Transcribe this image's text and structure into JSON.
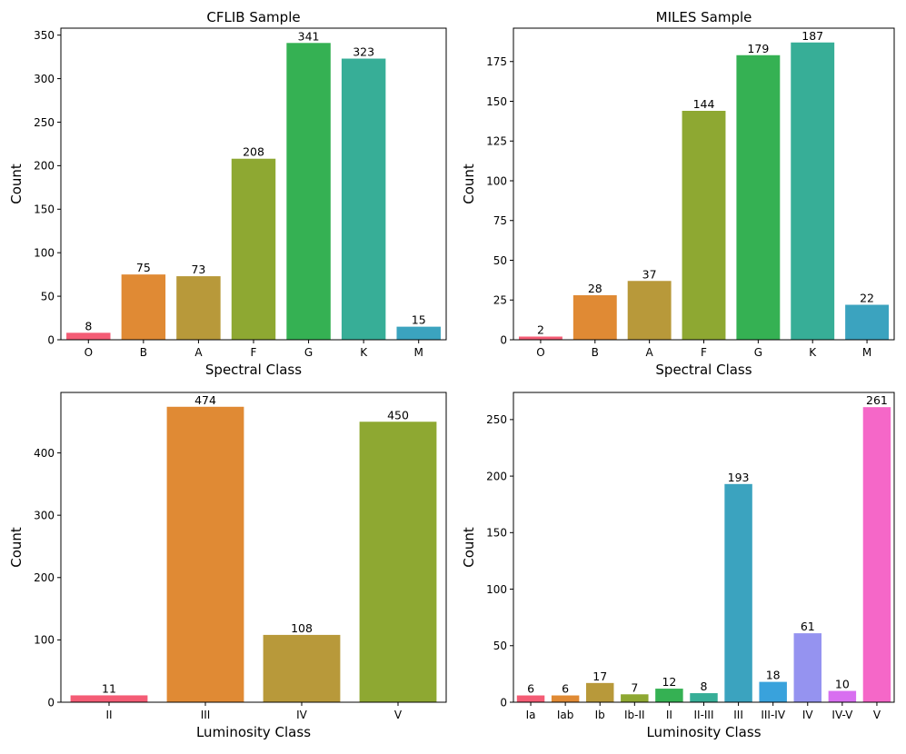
{
  "chart_data": [
    {
      "type": "bar",
      "title": "CFLIB Sample",
      "xlabel": "Spectral Class",
      "ylabel": "Count",
      "categories": [
        "O",
        "B",
        "A",
        "F",
        "G",
        "K",
        "M"
      ],
      "values": [
        8,
        75,
        73,
        208,
        341,
        323,
        15
      ],
      "ylim": [
        0,
        358
      ],
      "yticks": [
        0,
        50,
        100,
        150,
        200,
        250,
        300,
        350
      ],
      "colors": [
        "#f45c75",
        "#e08a34",
        "#b8993a",
        "#8ea832",
        "#35b153",
        "#37ae97",
        "#3ba3bf"
      ],
      "grid": false,
      "legend": "none"
    },
    {
      "type": "bar",
      "title": "MILES Sample",
      "xlabel": "Spectral Class",
      "ylabel": "Count",
      "categories": [
        "O",
        "B",
        "A",
        "F",
        "G",
        "K",
        "M"
      ],
      "values": [
        2,
        28,
        37,
        144,
        179,
        187,
        22
      ],
      "ylim": [
        0,
        196
      ],
      "yticks": [
        0,
        25,
        50,
        75,
        100,
        125,
        150,
        175
      ],
      "colors": [
        "#f45c75",
        "#e08a34",
        "#b8993a",
        "#8ea832",
        "#35b153",
        "#37ae97",
        "#3ba3bf"
      ],
      "grid": false,
      "legend": "none"
    },
    {
      "type": "bar",
      "title": "",
      "xlabel": "Luminosity Class",
      "ylabel": "Count",
      "categories": [
        "II",
        "III",
        "IV",
        "V"
      ],
      "values": [
        11,
        474,
        108,
        450
      ],
      "ylim": [
        0,
        497
      ],
      "yticks": [
        0,
        100,
        200,
        300,
        400
      ],
      "colors": [
        "#f45c75",
        "#e08a34",
        "#b8993a",
        "#8ea832"
      ],
      "grid": false,
      "legend": "none"
    },
    {
      "type": "bar",
      "title": "",
      "xlabel": "Luminosity Class",
      "ylabel": "Count",
      "categories": [
        "Ia",
        "Iab",
        "Ib",
        "Ib-II",
        "II",
        "II-III",
        "III",
        "III-IV",
        "IV",
        "IV-V",
        "V"
      ],
      "values": [
        6,
        6,
        17,
        7,
        12,
        8,
        193,
        18,
        61,
        10,
        261
      ],
      "ylim": [
        0,
        274
      ],
      "yticks": [
        0,
        50,
        100,
        150,
        200,
        250
      ],
      "colors": [
        "#f45c75",
        "#e08a34",
        "#b8993a",
        "#8ea832",
        "#35b153",
        "#37ae97",
        "#3ba3bf",
        "#39a2dc",
        "#9593f0",
        "#d86ff0",
        "#f567c8"
      ],
      "grid": false,
      "legend": "none"
    }
  ]
}
